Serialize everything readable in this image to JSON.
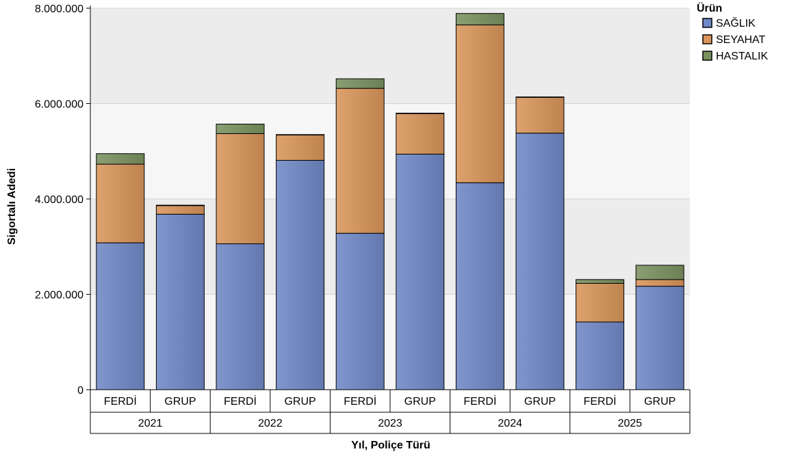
{
  "chart_data": {
    "type": "bar",
    "stacked": true,
    "groups": [
      "2021",
      "2022",
      "2023",
      "2024",
      "2025"
    ],
    "subcategories": [
      "FERDİ",
      "GRUP"
    ],
    "categories": [
      "2021 FERDİ",
      "2021 GRUP",
      "2022 FERDİ",
      "2022 GRUP",
      "2023 FERDİ",
      "2023 GRUP",
      "2024 FERDİ",
      "2024 GRUP",
      "2025 FERDİ",
      "2025 GRUP"
    ],
    "series": [
      {
        "name": "SAĞLIK",
        "color": "#6f88c6",
        "values": [
          3080000,
          3680000,
          3060000,
          4810000,
          3280000,
          4940000,
          4340000,
          5380000,
          1420000,
          2170000
        ]
      },
      {
        "name": "SEYAHAT",
        "color": "#d9955a",
        "values": [
          1650000,
          180000,
          2310000,
          530000,
          3040000,
          850000,
          3310000,
          750000,
          810000,
          140000
        ]
      },
      {
        "name": "HASTALIK",
        "color": "#7a9260",
        "values": [
          220000,
          10000,
          200000,
          10000,
          200000,
          10000,
          240000,
          10000,
          80000,
          300000
        ]
      }
    ],
    "ylabel": "Sigortalı Adedi",
    "xlabel": "Yıl, Poliçe Türü",
    "ylim": [
      0,
      8000000
    ],
    "yticks": [
      0,
      2000000,
      4000000,
      6000000,
      8000000
    ],
    "ytick_labels": [
      "0",
      "2.000.000",
      "4.000.000",
      "6.000.000",
      "8.000.000"
    ],
    "legend_title": "Ürün",
    "legend_position": "top-right",
    "grid": true
  }
}
